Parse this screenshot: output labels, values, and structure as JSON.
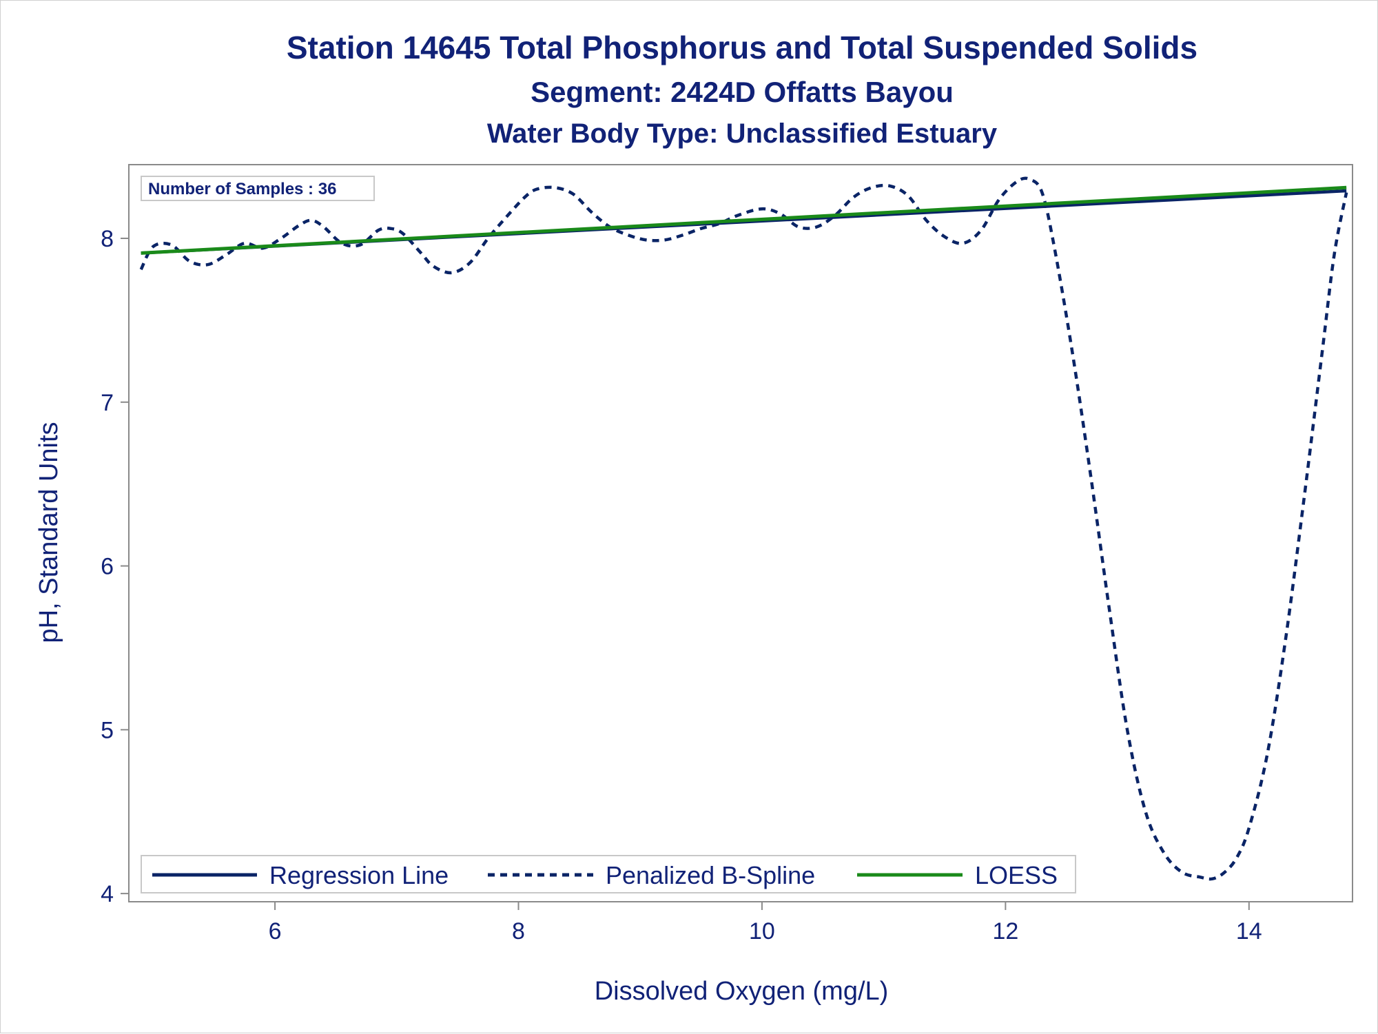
{
  "chart_data": {
    "type": "line",
    "title": "Station 14645  Total Phosphorus and Total Suspended Solids",
    "subtitle": "Segment: 2424D  Offatts Bayou",
    "subtitle2": "Water Body Type: Unclassified Estuary",
    "xlabel": "Dissolved Oxygen (mg/L)",
    "ylabel": "pH, Standard Units",
    "xlim": [
      4.8,
      14.85
    ],
    "ylim": [
      3.95,
      8.45
    ],
    "x_ticks": [
      6,
      8,
      10,
      12,
      14
    ],
    "y_ticks": [
      4,
      5,
      6,
      7,
      8
    ],
    "grid": false,
    "annotation": "Number of Samples : 36",
    "legend_position": "bottom-left-inside",
    "colors": {
      "regression": "#0a2466",
      "spline": "#0a2466",
      "loess": "#1a8a1a",
      "text": "#112277",
      "frame": "#8a8a8a"
    },
    "series": [
      {
        "name": "Regression Line",
        "style": "solid",
        "x": [
          4.9,
          14.8
        ],
        "y": [
          7.91,
          8.29
        ]
      },
      {
        "name": "Penalized B-Spline",
        "style": "dashed",
        "x": [
          4.9,
          5.0,
          5.15,
          5.3,
          5.45,
          5.6,
          5.75,
          5.9,
          6.05,
          6.2,
          6.3,
          6.4,
          6.55,
          6.7,
          6.85,
          6.95,
          7.05,
          7.2,
          7.3,
          7.45,
          7.6,
          7.75,
          7.9,
          8.05,
          8.15,
          8.3,
          8.45,
          8.6,
          8.75,
          8.9,
          9.05,
          9.2,
          9.35,
          9.5,
          9.65,
          9.8,
          10.0,
          10.15,
          10.3,
          10.45,
          10.6,
          10.75,
          10.9,
          11.05,
          11.2,
          11.35,
          11.5,
          11.65,
          11.8,
          11.95,
          12.1,
          12.2,
          12.3,
          12.4,
          12.55,
          12.7,
          12.85,
          13.0,
          13.15,
          13.3,
          13.45,
          13.6,
          13.7,
          13.8,
          13.9,
          14.0,
          14.15,
          14.3,
          14.45,
          14.6,
          14.7,
          14.8
        ],
        "y": [
          7.81,
          7.95,
          7.96,
          7.86,
          7.84,
          7.9,
          7.97,
          7.94,
          8.0,
          8.08,
          8.11,
          8.07,
          7.97,
          7.96,
          8.05,
          8.06,
          8.03,
          7.91,
          7.83,
          7.79,
          7.85,
          8.0,
          8.13,
          8.25,
          8.3,
          8.31,
          8.27,
          8.16,
          8.07,
          8.02,
          7.99,
          7.99,
          8.02,
          8.06,
          8.09,
          8.14,
          8.18,
          8.15,
          8.07,
          8.07,
          8.14,
          8.25,
          8.31,
          8.32,
          8.26,
          8.11,
          8.01,
          7.97,
          8.05,
          8.24,
          8.35,
          8.36,
          8.28,
          7.95,
          7.3,
          6.55,
          5.75,
          5.0,
          4.5,
          4.25,
          4.13,
          4.1,
          4.09,
          4.13,
          4.22,
          4.4,
          4.85,
          5.55,
          6.4,
          7.3,
          7.9,
          8.28
        ]
      },
      {
        "name": "LOESS",
        "style": "solid",
        "x": [
          4.9,
          14.8
        ],
        "y": [
          7.91,
          8.31
        ]
      }
    ]
  }
}
